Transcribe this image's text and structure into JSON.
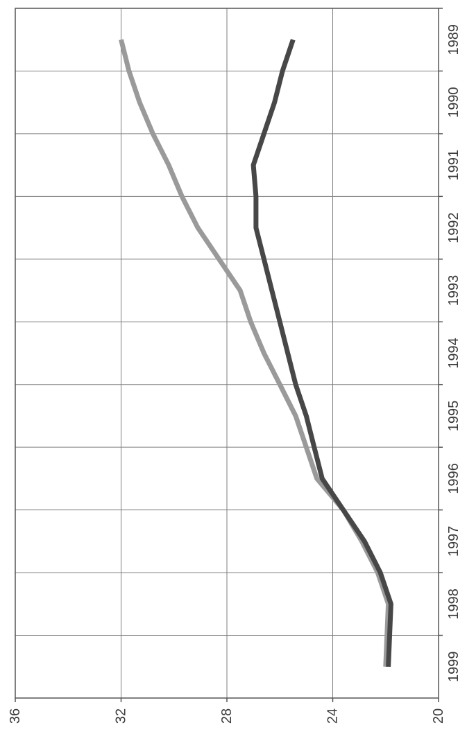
{
  "chart_data": {
    "type": "line",
    "orientation": "rotated-90-cw",
    "title": "",
    "xlabel": "",
    "ylabel": "",
    "x": [
      "1989",
      "1990",
      "1991",
      "1992",
      "1993",
      "1994",
      "1995",
      "1996",
      "1997",
      "1998",
      "1999"
    ],
    "xlim": [
      1988.5,
      1999.5
    ],
    "ylim": [
      20,
      36
    ],
    "yticks": [
      "20",
      "24",
      "28",
      "32",
      "36"
    ],
    "grid": true,
    "legend": "none",
    "series": [
      {
        "color": "#9a9a9a",
        "points": [
          [
            1989.0,
            32.0
          ],
          [
            1989.5,
            31.7
          ],
          [
            1990.0,
            31.3
          ],
          [
            1990.5,
            30.8
          ],
          [
            1991.0,
            30.2
          ],
          [
            1991.5,
            29.7
          ],
          [
            1992.0,
            29.1
          ],
          [
            1992.5,
            28.3
          ],
          [
            1993.0,
            27.5
          ],
          [
            1993.5,
            27.1
          ],
          [
            1994.0,
            26.6
          ],
          [
            1994.5,
            26.0
          ],
          [
            1995.0,
            25.4
          ],
          [
            1995.5,
            25.0
          ],
          [
            1996.0,
            24.6
          ],
          [
            1996.5,
            23.6
          ],
          [
            1997.0,
            22.9
          ],
          [
            1997.5,
            22.3
          ],
          [
            1998.0,
            21.9
          ],
          [
            1999.0,
            22.0
          ]
        ]
      },
      {
        "color": "#474747",
        "points": [
          [
            1989.0,
            25.5
          ],
          [
            1989.5,
            25.9
          ],
          [
            1990.0,
            26.2
          ],
          [
            1990.5,
            26.6
          ],
          [
            1991.0,
            27.0
          ],
          [
            1991.5,
            26.9
          ],
          [
            1992.0,
            26.9
          ],
          [
            1992.5,
            26.6
          ],
          [
            1993.0,
            26.3
          ],
          [
            1993.5,
            26.0
          ],
          [
            1994.0,
            25.7
          ],
          [
            1994.5,
            25.4
          ],
          [
            1995.0,
            25.0
          ],
          [
            1995.5,
            24.7
          ],
          [
            1996.0,
            24.4
          ],
          [
            1996.5,
            23.6
          ],
          [
            1997.0,
            22.8
          ],
          [
            1997.5,
            22.2
          ],
          [
            1998.0,
            21.8
          ],
          [
            1999.0,
            21.9
          ]
        ]
      }
    ]
  }
}
